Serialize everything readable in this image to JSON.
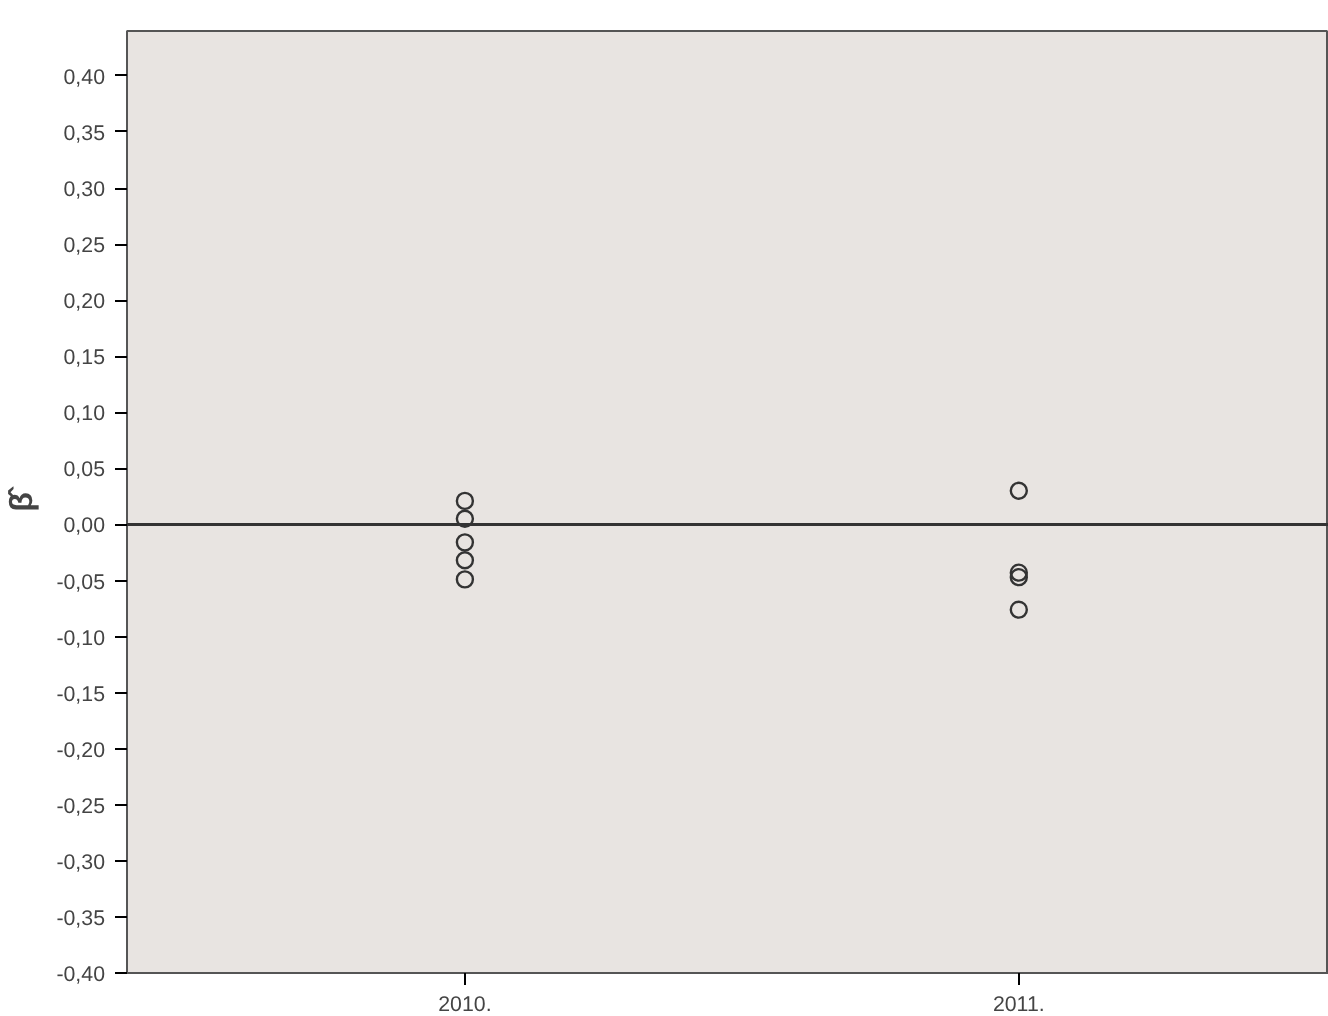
{
  "chart_data": {
    "type": "scatter",
    "ylabel": "β̂",
    "categories": [
      "2010.",
      "2011."
    ],
    "series": [
      {
        "color": "#333333",
        "x": [
          "2010.",
          "2010.",
          "2010.",
          "2010.",
          "2010.",
          "2011.",
          "2011.",
          "2011.",
          "2011."
        ],
        "values": [
          0.021,
          0.005,
          -0.016,
          -0.032,
          -0.049,
          0.03,
          -0.043,
          -0.047,
          -0.076
        ]
      }
    ],
    "ylim": [
      -0.4,
      0.44
    ],
    "yticks": [
      {
        "value": -0.4,
        "label": "-0,40"
      },
      {
        "value": -0.35,
        "label": "-0,35"
      },
      {
        "value": -0.3,
        "label": "-0,30"
      },
      {
        "value": -0.25,
        "label": "-0,25"
      },
      {
        "value": -0.2,
        "label": "-0,20"
      },
      {
        "value": -0.15,
        "label": "-0,15"
      },
      {
        "value": -0.1,
        "label": "-0,10"
      },
      {
        "value": -0.05,
        "label": "-0,05"
      },
      {
        "value": 0,
        "label": "0,00"
      },
      {
        "value": 0.05,
        "label": "0,05"
      },
      {
        "value": 0.1,
        "label": "0,10"
      },
      {
        "value": 0.15,
        "label": "0,15"
      },
      {
        "value": 0.2,
        "label": "0,20"
      },
      {
        "value": 0.25,
        "label": "0,25"
      },
      {
        "value": 0.3,
        "label": "0,30"
      },
      {
        "value": 0.35,
        "label": "0,35"
      },
      {
        "value": 0.4,
        "label": "0,40"
      }
    ],
    "ref_lines": [
      {
        "axis": "y",
        "value": 0,
        "color": "#333333"
      }
    ],
    "marker": "circle",
    "grid": false
  }
}
